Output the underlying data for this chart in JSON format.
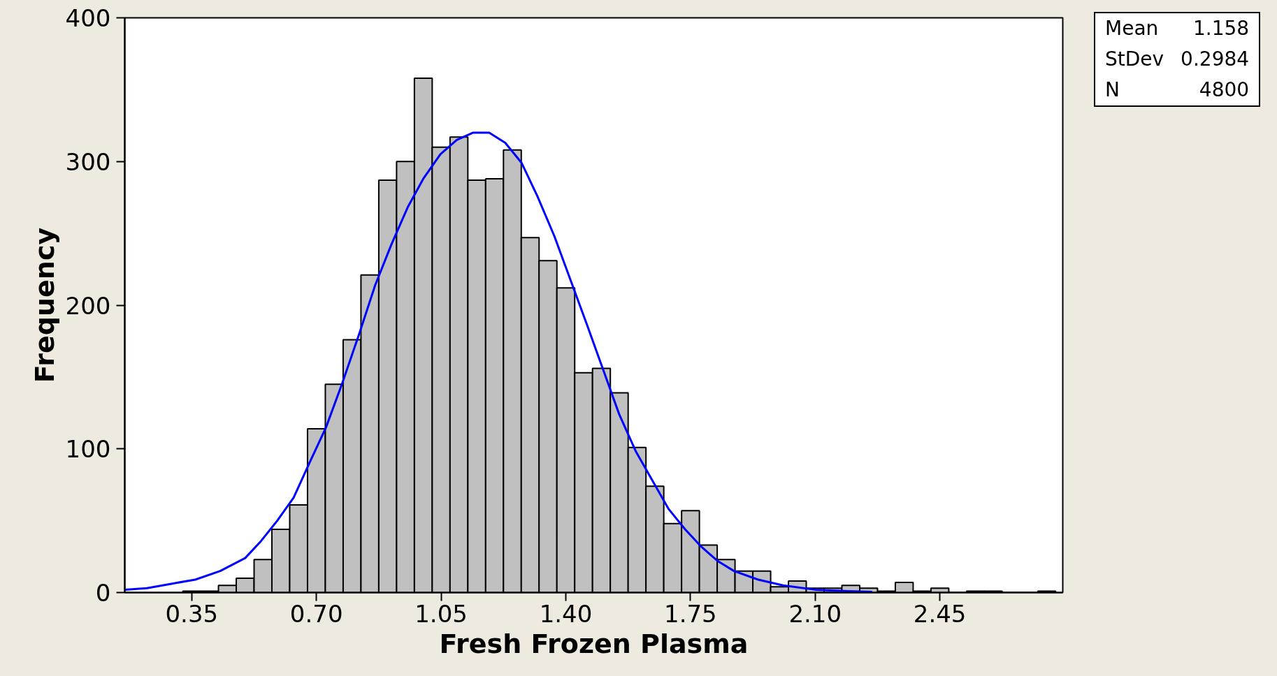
{
  "chart_data": {
    "type": "histogram",
    "xlabel": "Fresh Frozen Plasma",
    "ylabel": "Frequency",
    "bins": [
      0.325,
      0.375,
      0.425,
      0.475,
      0.525,
      0.575,
      0.625,
      0.675,
      0.725,
      0.775,
      0.825,
      0.875,
      0.925,
      0.975,
      1.025,
      1.075,
      1.125,
      1.175,
      1.225,
      1.275,
      1.325,
      1.375,
      1.425,
      1.475,
      1.525,
      1.575,
      1.625,
      1.675,
      1.725,
      1.775,
      1.825,
      1.875,
      1.925,
      1.975,
      2.025,
      2.075,
      2.125,
      2.175,
      2.225,
      2.275,
      2.325,
      2.375,
      2.425,
      2.475,
      2.525,
      2.575,
      2.625,
      2.675,
      2.725,
      2.775
    ],
    "values": [
      1,
      1,
      5,
      10,
      23,
      44,
      61,
      114,
      145,
      176,
      221,
      287,
      300,
      358,
      310,
      317,
      287,
      288,
      308,
      247,
      231,
      212,
      153,
      156,
      139,
      101,
      74,
      48,
      57,
      33,
      23,
      15,
      15,
      4,
      8,
      3,
      3,
      5,
      3,
      1,
      7,
      1,
      3,
      0,
      1,
      1,
      0,
      0,
      1
    ],
    "color": "#c0c0c0",
    "series": [
      {
        "type": "line",
        "color": "#0000ff",
        "x": [
          0.162,
          0.224,
          0.29,
          0.36,
          0.43,
          0.5,
          0.545,
          0.59,
          0.636,
          0.68,
          0.727,
          0.773,
          0.82,
          0.865,
          0.91,
          0.956,
          1.0,
          1.048,
          1.094,
          1.139,
          1.185,
          1.23,
          1.276,
          1.32,
          1.368,
          1.414,
          1.46,
          1.505,
          1.55,
          1.597,
          1.643,
          1.689,
          1.735,
          1.78,
          1.826,
          1.872,
          1.94,
          2.01,
          2.1,
          2.19,
          2.26
        ],
        "values": [
          2,
          3,
          6,
          9,
          15,
          24,
          36,
          50,
          66,
          90,
          115,
          146,
          180,
          214,
          242,
          268,
          288,
          305,
          315,
          320,
          320,
          313,
          299,
          276,
          248,
          217,
          186,
          155,
          124,
          98,
          78,
          58,
          44,
          32,
          22,
          15,
          9,
          5,
          2,
          1,
          0.5
        ]
      }
    ],
    "xlim": [
      0.162,
      2.795
    ],
    "ylim": [
      0,
      400
    ],
    "xticks": [
      0.35,
      {
        "value": 0.7,
        "label": "0.70"
      },
      1.05,
      {
        "value": 1.4,
        "label": "1.40"
      },
      1.75,
      {
        "value": 2.1,
        "label": "2.10"
      },
      2.45
    ],
    "yticks": [
      0,
      100,
      200,
      300,
      400
    ],
    "grid": false,
    "annotations": [
      "Mean",
      "1.158",
      "StDev",
      "0.2984",
      "N",
      "4800"
    ]
  }
}
